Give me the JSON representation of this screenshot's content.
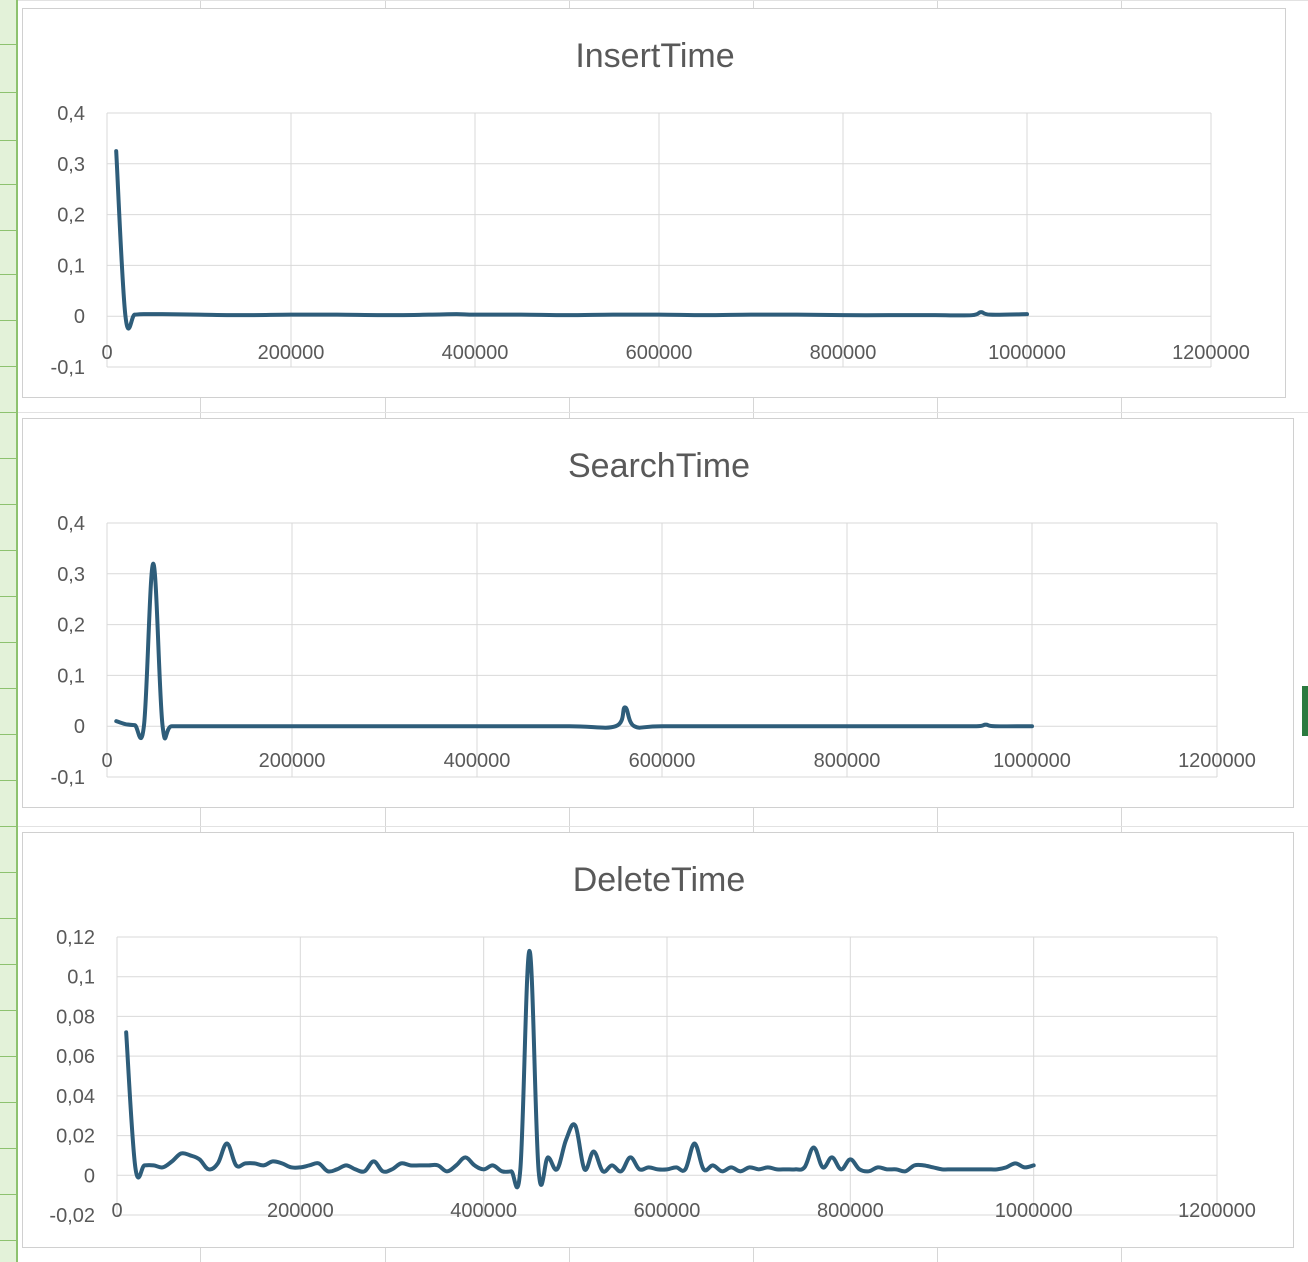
{
  "colors": {
    "series": "#2e5d7a",
    "grid": "#d9d9d9",
    "text": "#595959",
    "row_header": "#e3f2d9"
  },
  "chart_data": [
    {
      "type": "line",
      "title": "InsertTime",
      "xlabel": "",
      "ylabel": "",
      "grid": true,
      "xlim": [
        0,
        1200000
      ],
      "ylim": [
        -0.1,
        0.4
      ],
      "x_ticks": [
        0,
        200000,
        400000,
        600000,
        800000,
        1000000,
        1200000
      ],
      "x_tick_labels": [
        "0",
        "200000",
        "400000",
        "600000",
        "800000",
        "1000000",
        "1200000"
      ],
      "y_ticks": [
        -0.1,
        0,
        0.1,
        0.2,
        0.3,
        0.4
      ],
      "y_tick_labels": [
        "-0,1",
        "0",
        "0,1",
        "0,2",
        "0,3",
        "0,4"
      ],
      "series": [
        {
          "x": [
            10000,
            20000,
            30000,
            40000,
            60000,
            100000,
            150000,
            200000,
            250000,
            300000,
            350000,
            380000,
            400000,
            450000,
            500000,
            550000,
            600000,
            650000,
            700000,
            750000,
            800000,
            850000,
            900000,
            940000,
            950000,
            960000,
            1000000
          ],
          "y": [
            0.325,
            0.001,
            0.003,
            0.004,
            0.004,
            0.003,
            0.002,
            0.003,
            0.003,
            0.002,
            0.003,
            0.004,
            0.003,
            0.003,
            0.002,
            0.003,
            0.003,
            0.002,
            0.003,
            0.003,
            0.002,
            0.002,
            0.002,
            0.002,
            0.008,
            0.003,
            0.004
          ]
        }
      ]
    },
    {
      "type": "line",
      "title": "SearchTime",
      "xlabel": "",
      "ylabel": "",
      "grid": true,
      "xlim": [
        0,
        1200000
      ],
      "ylim": [
        -0.1,
        0.4
      ],
      "x_ticks": [
        0,
        200000,
        400000,
        600000,
        800000,
        1000000,
        1200000
      ],
      "x_tick_labels": [
        "0",
        "200000",
        "400000",
        "600000",
        "800000",
        "1000000",
        "1200000"
      ],
      "y_ticks": [
        -0.1,
        0,
        0.1,
        0.2,
        0.3,
        0.4
      ],
      "y_tick_labels": [
        "-0,1",
        "0",
        "0,1",
        "0,2",
        "0,3",
        "0,4"
      ],
      "series": [
        {
          "x": [
            10000,
            20000,
            30000,
            40000,
            50000,
            60000,
            70000,
            100000,
            200000,
            300000,
            400000,
            500000,
            550000,
            560000,
            570000,
            600000,
            700000,
            800000,
            900000,
            940000,
            950000,
            960000,
            1000000
          ],
          "y": [
            0.01,
            0.004,
            0.002,
            0.002,
            0.32,
            0.002,
            0.0,
            0.0,
            0.0,
            0.0,
            0.0,
            0.0,
            0.0,
            0.037,
            0.0,
            0.0,
            0.0,
            0.0,
            0.0,
            0.0,
            0.003,
            0.0,
            0.0
          ]
        }
      ]
    },
    {
      "type": "line",
      "title": "DeleteTime",
      "xlabel": "",
      "ylabel": "",
      "grid": true,
      "xlim": [
        0,
        1200000
      ],
      "ylim": [
        -0.02,
        0.12
      ],
      "x_ticks": [
        0,
        200000,
        400000,
        600000,
        800000,
        1000000,
        1200000
      ],
      "x_tick_labels": [
        "0",
        "200000",
        "400000",
        "600000",
        "800000",
        "1000000",
        "1200000"
      ],
      "y_ticks": [
        -0.02,
        0,
        0.02,
        0.04,
        0.06,
        0.08,
        0.1,
        0.12
      ],
      "y_tick_labels": [
        "-0,02",
        "0",
        "0,02",
        "0,04",
        "0,06",
        "0,08",
        "0,1",
        "0,12"
      ],
      "series": [
        {
          "x": [
            10000,
            20000,
            30000,
            40000,
            50000,
            60000,
            70000,
            80000,
            90000,
            100000,
            110000,
            120000,
            130000,
            140000,
            150000,
            160000,
            170000,
            180000,
            190000,
            200000,
            210000,
            220000,
            230000,
            240000,
            250000,
            260000,
            270000,
            280000,
            290000,
            300000,
            310000,
            320000,
            330000,
            340000,
            350000,
            360000,
            370000,
            380000,
            390000,
            400000,
            410000,
            420000,
            430000,
            440000,
            450000,
            460000,
            470000,
            480000,
            490000,
            500000,
            510000,
            520000,
            530000,
            540000,
            550000,
            560000,
            570000,
            580000,
            590000,
            600000,
            610000,
            620000,
            630000,
            640000,
            650000,
            660000,
            670000,
            680000,
            690000,
            700000,
            710000,
            720000,
            730000,
            740000,
            750000,
            760000,
            770000,
            780000,
            790000,
            800000,
            810000,
            820000,
            830000,
            840000,
            850000,
            860000,
            870000,
            880000,
            890000,
            900000,
            910000,
            920000,
            930000,
            940000,
            950000,
            960000,
            970000,
            980000,
            990000,
            1000000
          ],
          "y": [
            0.072,
            0.004,
            0.005,
            0.005,
            0.004,
            0.007,
            0.011,
            0.01,
            0.008,
            0.003,
            0.006,
            0.016,
            0.005,
            0.006,
            0.006,
            0.005,
            0.007,
            0.006,
            0.004,
            0.004,
            0.005,
            0.006,
            0.002,
            0.003,
            0.005,
            0.003,
            0.002,
            0.007,
            0.002,
            0.003,
            0.006,
            0.005,
            0.005,
            0.005,
            0.005,
            0.002,
            0.005,
            0.009,
            0.005,
            0.003,
            0.005,
            0.002,
            0.002,
            0.003,
            0.113,
            0.002,
            0.009,
            0.003,
            0.018,
            0.025,
            0.003,
            0.012,
            0.002,
            0.005,
            0.002,
            0.009,
            0.003,
            0.004,
            0.003,
            0.003,
            0.004,
            0.003,
            0.016,
            0.003,
            0.005,
            0.002,
            0.004,
            0.002,
            0.004,
            0.003,
            0.004,
            0.003,
            0.003,
            0.003,
            0.004,
            0.014,
            0.004,
            0.009,
            0.003,
            0.008,
            0.003,
            0.002,
            0.004,
            0.003,
            0.003,
            0.002,
            0.005,
            0.005,
            0.004,
            0.003,
            0.003,
            0.003,
            0.003,
            0.003,
            0.003,
            0.003,
            0.004,
            0.006,
            0.004,
            0.005
          ]
        }
      ]
    }
  ]
}
